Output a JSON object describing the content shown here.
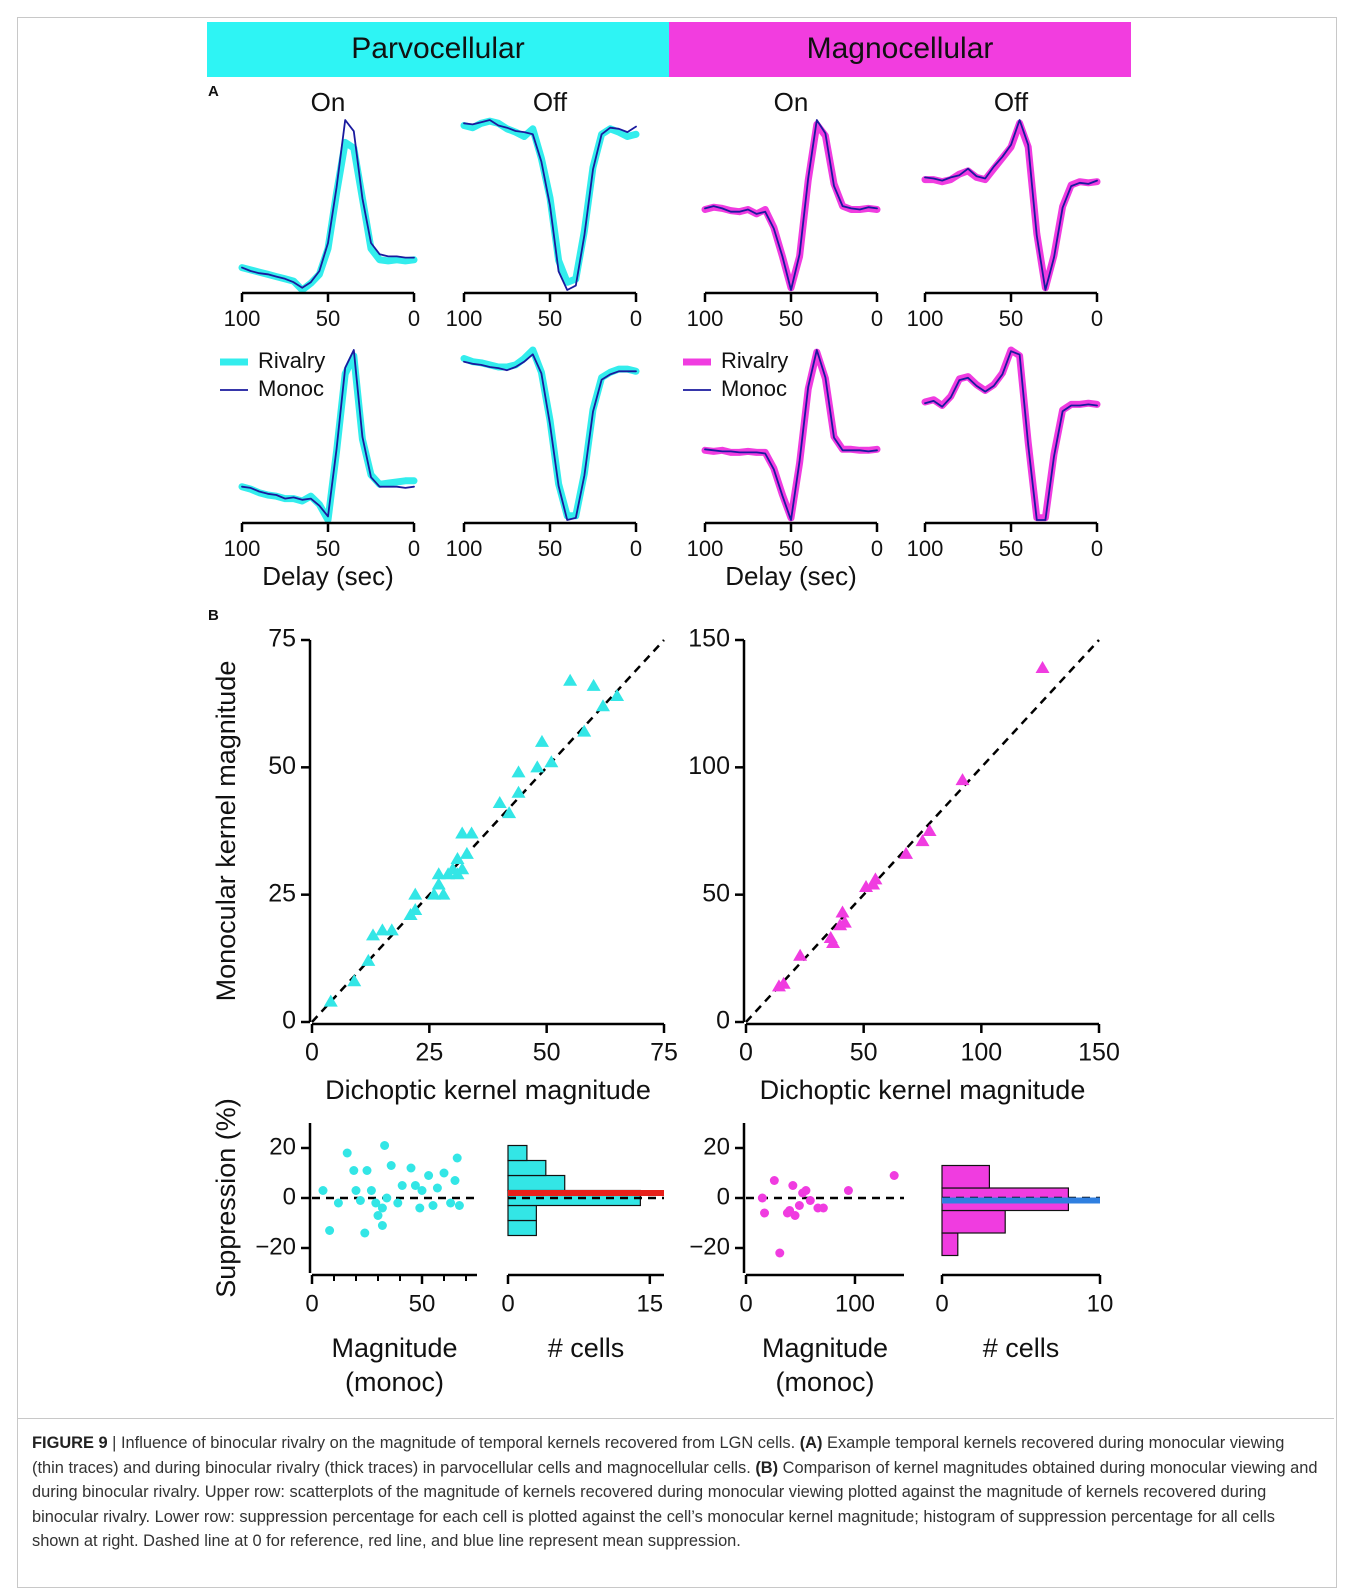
{
  "headers": [
    "Parvocellular",
    "Magnocellular"
  ],
  "panel_labels": [
    "A",
    "B"
  ],
  "chart_data": [
    {
      "type": "line",
      "title": "On",
      "x": [
        100,
        95,
        90,
        85,
        80,
        75,
        70,
        65,
        60,
        55,
        50,
        45,
        40,
        35,
        30,
        25,
        20,
        15,
        10,
        5,
        0
      ],
      "xlim": [
        100,
        0
      ],
      "xticks": [
        100,
        50,
        0
      ],
      "series": [
        {
          "color": "#33eded",
          "values": [
            28,
            26,
            24,
            22,
            20,
            18,
            16,
            8,
            14,
            22,
            45,
            95,
            140,
            135,
            90,
            45,
            35,
            34,
            35,
            34,
            35
          ]
        },
        {
          "color": "#1a1a9e",
          "values": [
            28,
            25,
            23,
            22,
            20,
            18,
            15,
            10,
            15,
            25,
            50,
            100,
            160,
            150,
            90,
            50,
            40,
            38,
            38,
            37,
            37
          ]
        }
      ]
    },
    {
      "type": "line",
      "title": "Off",
      "x": [
        100,
        95,
        90,
        85,
        80,
        75,
        70,
        65,
        60,
        55,
        50,
        45,
        40,
        35,
        30,
        25,
        20,
        15,
        10,
        5,
        0
      ],
      "xlim": [
        100,
        0
      ],
      "xticks": [
        100,
        50,
        0
      ],
      "series": [
        {
          "color": "#33eded",
          "values": [
            158,
            156,
            160,
            162,
            160,
            155,
            152,
            148,
            155,
            128,
            92,
            35,
            15,
            18,
            62,
            120,
            150,
            155,
            152,
            148,
            150
          ]
        },
        {
          "color": "#1a1a9e",
          "values": [
            160,
            159,
            161,
            163,
            158,
            156,
            153,
            152,
            150,
            125,
            85,
            25,
            8,
            12,
            58,
            118,
            150,
            156,
            155,
            152,
            157
          ]
        }
      ]
    },
    {
      "type": "line",
      "title": "On",
      "x": [
        100,
        95,
        90,
        85,
        80,
        75,
        70,
        65,
        60,
        55,
        50,
        45,
        40,
        35,
        30,
        25,
        20,
        15,
        10,
        5,
        0
      ],
      "xlim": [
        100,
        0
      ],
      "xticks": [
        100,
        50,
        0
      ],
      "series": [
        {
          "color": "#f03ce0",
          "values": [
            82,
            84,
            83,
            81,
            80,
            82,
            78,
            82,
            66,
            40,
            12,
            40,
            108,
            158,
            148,
            105,
            85,
            82,
            82,
            83,
            82
          ]
        },
        {
          "color": "#1a1a9e",
          "values": [
            83,
            85,
            83,
            80,
            80,
            82,
            78,
            80,
            65,
            40,
            10,
            42,
            110,
            162,
            150,
            103,
            85,
            83,
            82,
            84,
            83
          ]
        }
      ]
    },
    {
      "type": "line",
      "title": "Off",
      "x": [
        100,
        95,
        90,
        85,
        80,
        75,
        70,
        65,
        60,
        55,
        50,
        45,
        40,
        35,
        30,
        25,
        20,
        15,
        10,
        5,
        0
      ],
      "xlim": [
        100,
        0
      ],
      "xticks": [
        100,
        50,
        0
      ],
      "series": [
        {
          "color": "#f03ce0",
          "values": [
            110,
            110,
            108,
            110,
            115,
            118,
            112,
            110,
            120,
            130,
            140,
            162,
            140,
            60,
            10,
            40,
            85,
            105,
            108,
            107,
            108
          ]
        },
        {
          "color": "#1a1a9e",
          "values": [
            112,
            111,
            109,
            112,
            114,
            120,
            113,
            111,
            122,
            131,
            142,
            165,
            142,
            58,
            8,
            38,
            84,
            104,
            107,
            106,
            109
          ]
        }
      ]
    },
    {
      "type": "line",
      "x_label": "Delay (sec)",
      "x": [
        100,
        95,
        90,
        85,
        80,
        75,
        70,
        65,
        60,
        55,
        50,
        45,
        40,
        35,
        30,
        25,
        20,
        15,
        10,
        5,
        0
      ],
      "xlim": [
        100,
        0
      ],
      "xticks": [
        100,
        50,
        0
      ],
      "series": [
        {
          "name": "Rivalry",
          "color": "#33eded",
          "values": [
            40,
            38,
            35,
            33,
            32,
            30,
            30,
            28,
            32,
            25,
            12,
            70,
            135,
            150,
            80,
            50,
            42,
            43,
            44,
            45,
            45
          ]
        },
        {
          "name": "Monoc",
          "color": "#1a1a9e",
          "values": [
            40,
            39,
            36,
            34,
            33,
            30,
            31,
            29,
            30,
            24,
            15,
            72,
            140,
            155,
            82,
            48,
            40,
            40,
            40,
            39,
            40
          ]
        }
      ]
    },
    {
      "type": "line",
      "x": [
        100,
        95,
        90,
        85,
        80,
        75,
        70,
        65,
        60,
        55,
        50,
        45,
        40,
        35,
        30,
        25,
        20,
        15,
        10,
        5,
        0
      ],
      "xlim": [
        100,
        0
      ],
      "xticks": [
        100,
        50,
        0
      ],
      "series": [
        {
          "color": "#33eded",
          "values": [
            158,
            155,
            154,
            152,
            150,
            150,
            152,
            158,
            166,
            145,
            100,
            40,
            10,
            10,
            50,
            110,
            140,
            145,
            148,
            148,
            146
          ]
        },
        {
          "color": "#1a1a9e",
          "values": [
            155,
            153,
            152,
            150,
            149,
            147,
            150,
            155,
            162,
            144,
            96,
            38,
            6,
            8,
            48,
            108,
            138,
            143,
            146,
            146,
            146
          ]
        }
      ]
    },
    {
      "type": "line",
      "x_label": "Delay (sec)",
      "x": [
        100,
        95,
        90,
        85,
        80,
        75,
        70,
        65,
        60,
        55,
        50,
        45,
        40,
        35,
        30,
        25,
        20,
        15,
        10,
        5,
        0
      ],
      "xlim": [
        100,
        0
      ],
      "xticks": [
        100,
        50,
        0
      ],
      "series": [
        {
          "name": "Rivalry",
          "color": "#f03ce0",
          "values": [
            72,
            71,
            72,
            70,
            70,
            71,
            70,
            70,
            55,
            30,
            8,
            60,
            130,
            165,
            140,
            85,
            73,
            73,
            72,
            72,
            73
          ]
        },
        {
          "name": "Monoc",
          "color": "#1a1a9e",
          "values": [
            73,
            72,
            71,
            71,
            70,
            70,
            70,
            69,
            54,
            29,
            6,
            62,
            132,
            167,
            141,
            84,
            72,
            72,
            72,
            71,
            72
          ]
        }
      ]
    },
    {
      "type": "line",
      "x": [
        100,
        95,
        90,
        85,
        80,
        75,
        70,
        65,
        60,
        55,
        50,
        45,
        40,
        35,
        30,
        25,
        20,
        15,
        10,
        5,
        0
      ],
      "xlim": [
        100,
        0
      ],
      "xticks": [
        100,
        50,
        0
      ],
      "series": [
        {
          "color": "#f03ce0",
          "values": [
            115,
            117,
            112,
            120,
            135,
            137,
            130,
            125,
            130,
            140,
            160,
            155,
            80,
            15,
            15,
            70,
            108,
            113,
            113,
            114,
            113
          ]
        },
        {
          "color": "#1a1a9e",
          "values": [
            114,
            116,
            111,
            119,
            134,
            136,
            129,
            124,
            129,
            139,
            159,
            156,
            78,
            13,
            13,
            68,
            107,
            112,
            112,
            113,
            112
          ]
        }
      ]
    },
    {
      "type": "scatter",
      "marker": "triangle",
      "color": "#33e6e6",
      "identity_line": true,
      "x_label": "Dichoptic kernel magnitude",
      "y_label": "Monocular kernel magnitude",
      "xlim": [
        0,
        75
      ],
      "ylim": [
        0,
        75
      ],
      "xticks": [
        0,
        25,
        50,
        75
      ],
      "yticks": [
        0,
        25,
        50,
        75
      ],
      "x": [
        4,
        9,
        12,
        13,
        15,
        17,
        21,
        22,
        22,
        26,
        27,
        27,
        28,
        29,
        30,
        31,
        31,
        32,
        32,
        33,
        34,
        40,
        42,
        44,
        44,
        48,
        49,
        51,
        55,
        58,
        60,
        62,
        65
      ],
      "values": [
        4,
        8,
        12,
        17,
        18,
        18,
        21,
        22,
        25,
        25,
        27,
        29,
        25,
        29,
        30,
        29,
        32,
        37,
        30,
        33,
        37,
        43,
        41,
        45,
        49,
        50,
        55,
        51,
        67,
        57,
        66,
        62,
        64
      ]
    },
    {
      "type": "scatter",
      "marker": "triangle",
      "color": "#f03ce0",
      "identity_line": true,
      "x_label": "Dichoptic kernel magnitude",
      "xlim": [
        0,
        150
      ],
      "ylim": [
        0,
        150
      ],
      "xticks": [
        0,
        50,
        100,
        150
      ],
      "yticks": [
        0,
        50,
        100,
        150
      ],
      "x": [
        14,
        16,
        23,
        36,
        37,
        40,
        41,
        42,
        51,
        54,
        55,
        68,
        75,
        78,
        92,
        126
      ],
      "values": [
        14,
        15,
        26,
        33,
        31,
        38,
        43,
        39,
        53,
        54,
        56,
        66,
        71,
        75,
        95,
        139
      ]
    },
    {
      "type": "scatter",
      "marker": "circle",
      "color": "#33e6e6",
      "reference_y": 0,
      "x_label": [
        "Magnitude",
        "(monoc)"
      ],
      "y_label": "Suppression (%)",
      "xlim": [
        0,
        75
      ],
      "ylim": [
        -30,
        30
      ],
      "xticks": [
        0,
        50
      ],
      "xminorticks": [
        10,
        20,
        30,
        40,
        60,
        70
      ],
      "yticks": [
        {
          "value": -20,
          "label": "−20"
        },
        0,
        20
      ],
      "x": [
        5,
        8,
        12,
        16,
        19,
        20,
        22,
        24,
        25,
        27,
        29,
        30,
        32,
        32,
        33,
        34,
        36,
        39,
        41,
        45,
        47,
        49,
        50,
        53,
        55,
        57,
        60,
        63,
        65,
        66,
        67
      ],
      "values": [
        3,
        -13,
        -2,
        18,
        11,
        3,
        -1,
        -14,
        11,
        3,
        -2,
        -7,
        -11,
        -4,
        21,
        0,
        13,
        -2,
        5,
        12,
        5,
        -4,
        3,
        9,
        -3,
        4,
        10,
        -2,
        7,
        16,
        -3
      ]
    },
    {
      "type": "histogram",
      "orientation": "horizontal",
      "color": "#33e6e6",
      "reference_y": 0,
      "mean_line": {
        "value": 2,
        "color": "#e8201a"
      },
      "x_label": "# cells",
      "xlim": [
        0,
        16.5
      ],
      "xticks": [
        0,
        15
      ],
      "ylim": [
        -30,
        30
      ],
      "bins": [
        -15,
        -9,
        -3,
        3,
        9,
        15,
        21
      ],
      "values": [
        3,
        3,
        14,
        6,
        4,
        2
      ]
    },
    {
      "type": "scatter",
      "marker": "circle",
      "color": "#f03ce0",
      "reference_y": 0,
      "x_label": [
        "Magnitude",
        "(monoc)"
      ],
      "xlim": [
        0,
        145
      ],
      "ylim": [
        -30,
        30
      ],
      "xticks": [
        0,
        100
      ],
      "yticks": [
        {
          "value": -20,
          "label": "−20"
        },
        0,
        20
      ],
      "x": [
        15,
        17,
        26,
        31,
        38,
        40,
        43,
        45,
        49,
        52,
        55,
        59,
        66,
        71,
        94,
        136
      ],
      "values": [
        0,
        -6,
        7,
        -22,
        -6,
        -5,
        5,
        -7,
        -3,
        2,
        3,
        -1,
        -4,
        -4,
        3,
        9
      ]
    },
    {
      "type": "histogram",
      "orientation": "horizontal",
      "color": "#f03ce0",
      "reference_y": 0,
      "mean_line": {
        "value": -1,
        "color": "#2f7fe0"
      },
      "x_label": "# cells",
      "xlim": [
        0,
        10
      ],
      "xticks": [
        0,
        10
      ],
      "ylim": [
        -30,
        30
      ],
      "bins": [
        -23,
        -14,
        -5,
        4,
        13
      ],
      "values": [
        1,
        4,
        8,
        3
      ]
    }
  ],
  "caption": {
    "figure": "FIGURE 9",
    "intro": "| Influence of binocular rivalry on the magnitude of temporal kernels recovered from LGN cells.",
    "a_label": "(A)",
    "a_text": "Example temporal kernels recovered during monocular viewing (thin traces) and during binocular rivalry (thick traces) in parvocellular cells and magnocellular cells.",
    "b_label": "(B)",
    "b_text": "Comparison of kernel magnitudes obtained during monocular viewing and during binocular rivalry. Upper row: scatterplots of the magnitude of kernels recovered during monocular viewing plotted against the magnitude of kernels recovered during binocular rivalry. Lower row: suppression percentage for each cell is plotted against the cell’s monocular kernel magnitude; histogram of suppression percentage for all cells shown at right. Dashed line at 0 for reference, red line, and blue line represent mean suppression."
  }
}
